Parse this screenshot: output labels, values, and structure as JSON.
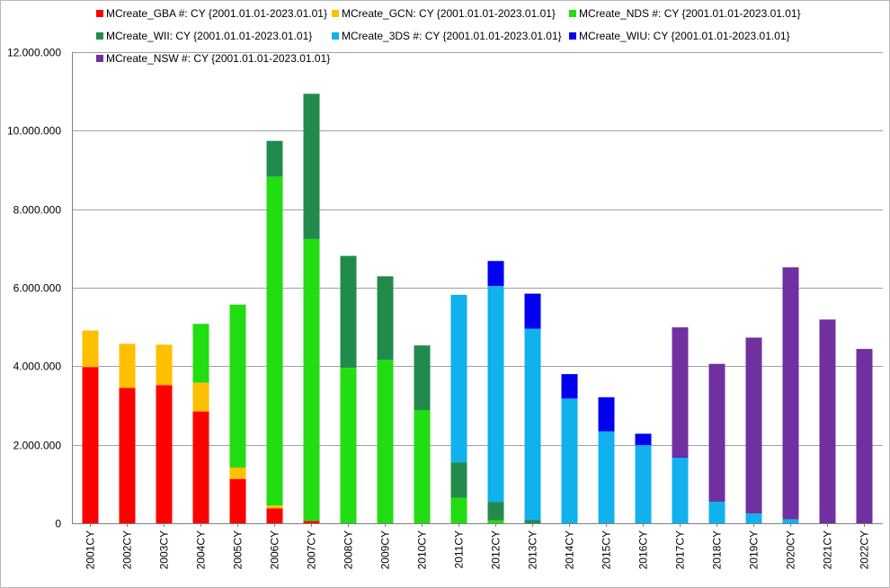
{
  "chart_data": {
    "type": "bar",
    "stacked": true,
    "title": "",
    "xlabel": "",
    "ylabel": "",
    "ylim": [
      0,
      12000000
    ],
    "yticks": [
      0,
      2000000,
      4000000,
      6000000,
      8000000,
      10000000,
      12000000
    ],
    "ytick_labels": [
      "0",
      "2.000.000",
      "4.000.000",
      "6.000.000",
      "8.000.000",
      "10.000.000",
      "12.000.000"
    ],
    "grid": true,
    "legend_position": "top",
    "categories": [
      "2001CY",
      "2002CY",
      "2003CY",
      "2004CY",
      "2005CY",
      "2006CY",
      "2007CY",
      "2008CY",
      "2009CY",
      "2010CY",
      "2011CY",
      "2012CY",
      "2013CY",
      "2014CY",
      "2015CY",
      "2016CY",
      "2017CY",
      "2018CY",
      "2019CY",
      "2020CY",
      "2021CY",
      "2022CY"
    ],
    "series": [
      {
        "name": "MCreate_GBA #: CY {2001.01.01-2023.01.01}",
        "color": "#ff0000",
        "values": [
          3980000,
          3450000,
          3520000,
          2850000,
          1130000,
          380000,
          60000,
          0,
          0,
          0,
          0,
          0,
          0,
          0,
          0,
          0,
          0,
          0,
          0,
          0,
          0,
          0
        ]
      },
      {
        "name": "MCreate_GCN: CY {2001.01.01-2023.01.01}",
        "color": "#ffc000",
        "values": [
          930000,
          1120000,
          1030000,
          730000,
          290000,
          70000,
          0,
          0,
          0,
          0,
          0,
          0,
          0,
          0,
          0,
          0,
          0,
          0,
          0,
          0,
          0,
          0
        ]
      },
      {
        "name": "MCreate_NDS #: CY {2001.01.01-2023.01.01}",
        "color": "#22dd11",
        "values": [
          0,
          0,
          0,
          1500000,
          4150000,
          8380000,
          7180000,
          3960000,
          4160000,
          2880000,
          650000,
          80000,
          0,
          0,
          0,
          0,
          0,
          0,
          0,
          0,
          0,
          0
        ]
      },
      {
        "name": "MCreate_WII: CY {2001.01.01-2023.01.01}",
        "color": "#228b4c",
        "values": [
          0,
          0,
          0,
          0,
          0,
          910000,
          3700000,
          2850000,
          2130000,
          1650000,
          900000,
          460000,
          80000,
          0,
          0,
          0,
          0,
          0,
          0,
          0,
          0,
          0
        ]
      },
      {
        "name": "MCreate_3DS #: CY {2001.01.01-2023.01.01}",
        "color": "#11b1ee",
        "values": [
          0,
          0,
          0,
          0,
          0,
          0,
          0,
          0,
          0,
          0,
          4270000,
          5500000,
          4880000,
          3180000,
          2340000,
          1990000,
          1670000,
          550000,
          250000,
          100000,
          0,
          0
        ]
      },
      {
        "name": "MCreate_WIU: CY {2001.01.01-2023.01.01}",
        "color": "#0000ee",
        "values": [
          0,
          0,
          0,
          0,
          0,
          0,
          0,
          0,
          0,
          0,
          0,
          640000,
          890000,
          620000,
          870000,
          290000,
          20000,
          0,
          0,
          0,
          0,
          0
        ]
      },
      {
        "name": "MCreate_NSW #: CY {2001.01.01-2023.01.01}",
        "color": "#7030a0",
        "values": [
          0,
          0,
          0,
          0,
          0,
          0,
          0,
          0,
          0,
          0,
          0,
          0,
          0,
          0,
          0,
          0,
          3300000,
          3510000,
          4480000,
          6420000,
          5190000,
          4440000
        ]
      }
    ]
  }
}
